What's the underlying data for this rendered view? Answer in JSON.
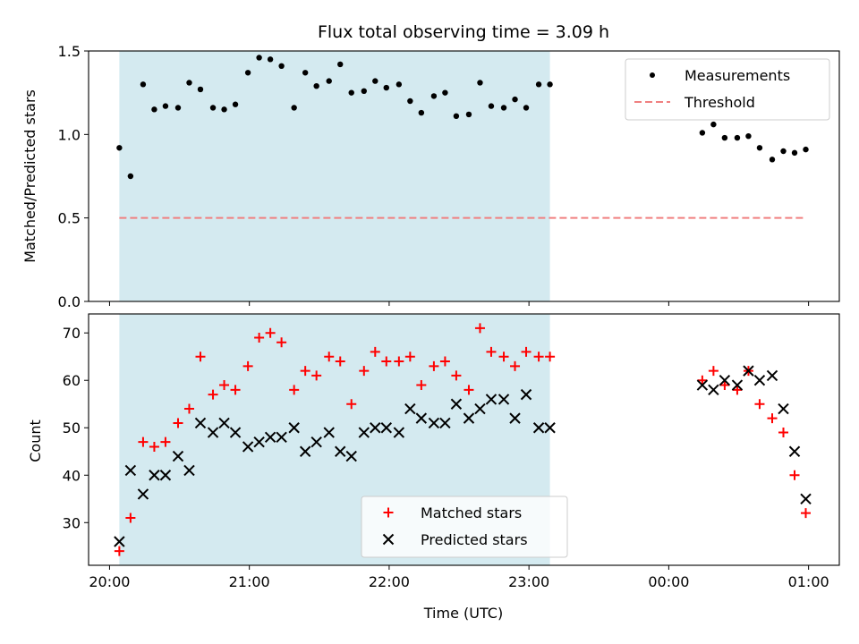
{
  "chart_data": {
    "title": "Flux total observing time = 3.09 h",
    "xlabel": "Time (UTC)",
    "x_ticks": [
      "20:00",
      "21:00",
      "22:00",
      "23:00",
      "00:00",
      "01:00"
    ],
    "x_ticks_hours": [
      20,
      21,
      22,
      23,
      24,
      25
    ],
    "xlim_hours": [
      19.85,
      25.22
    ],
    "shaded_region_hours": [
      20.07,
      23.15
    ],
    "shade_color": "#d4eaf0",
    "panels": [
      {
        "type": "scatter",
        "ylabel": "Matched/Predicted stars",
        "ylim": [
          0,
          1.5
        ],
        "y_ticks": [
          0.0,
          0.5,
          1.0,
          1.5
        ],
        "y_tick_labels": [
          "0.0",
          "0.5",
          "1.0",
          "1.5"
        ],
        "legend_position": "top-right",
        "series": [
          {
            "name": "Measurements",
            "marker": "dot",
            "color": "#000000",
            "points": [
              [
                20.07,
                0.92
              ],
              [
                20.15,
                0.75
              ],
              [
                20.24,
                1.3
              ],
              [
                20.32,
                1.15
              ],
              [
                20.4,
                1.17
              ],
              [
                20.49,
                1.16
              ],
              [
                20.57,
                1.31
              ],
              [
                20.65,
                1.27
              ],
              [
                20.74,
                1.16
              ],
              [
                20.82,
                1.15
              ],
              [
                20.9,
                1.18
              ],
              [
                20.99,
                1.37
              ],
              [
                21.07,
                1.46
              ],
              [
                21.15,
                1.45
              ],
              [
                21.23,
                1.41
              ],
              [
                21.32,
                1.16
              ],
              [
                21.4,
                1.37
              ],
              [
                21.48,
                1.29
              ],
              [
                21.57,
                1.32
              ],
              [
                21.65,
                1.42
              ],
              [
                21.73,
                1.25
              ],
              [
                21.82,
                1.26
              ],
              [
                21.9,
                1.32
              ],
              [
                21.98,
                1.28
              ],
              [
                22.07,
                1.3
              ],
              [
                22.15,
                1.2
              ],
              [
                22.23,
                1.13
              ],
              [
                22.32,
                1.23
              ],
              [
                22.4,
                1.25
              ],
              [
                22.48,
                1.11
              ],
              [
                22.57,
                1.12
              ],
              [
                22.65,
                1.31
              ],
              [
                22.73,
                1.17
              ],
              [
                22.82,
                1.16
              ],
              [
                22.9,
                1.21
              ],
              [
                22.98,
                1.16
              ],
              [
                23.07,
                1.3
              ],
              [
                23.15,
                1.3
              ],
              [
                24.24,
                1.01
              ],
              [
                24.32,
                1.06
              ],
              [
                24.4,
                0.98
              ],
              [
                24.49,
                0.98
              ],
              [
                24.57,
                0.99
              ],
              [
                24.65,
                0.92
              ],
              [
                24.74,
                0.85
              ],
              [
                24.82,
                0.9
              ],
              [
                24.9,
                0.89
              ],
              [
                24.98,
                0.91
              ]
            ]
          },
          {
            "name": "Threshold",
            "marker": "dashed-line",
            "color": "#f08080",
            "points": [
              [
                20.07,
                0.5
              ],
              [
                24.98,
                0.5
              ]
            ]
          }
        ]
      },
      {
        "type": "scatter",
        "ylabel": "Count",
        "ylim": [
          21,
          74
        ],
        "y_ticks": [
          30,
          40,
          50,
          60,
          70
        ],
        "y_tick_labels": [
          "30",
          "40",
          "50",
          "60",
          "70"
        ],
        "legend_position": "bottom-center",
        "series": [
          {
            "name": "Matched stars",
            "marker": "plus",
            "color": "#ff0000",
            "points": [
              [
                20.07,
                24
              ],
              [
                20.15,
                31
              ],
              [
                20.24,
                47
              ],
              [
                20.32,
                46
              ],
              [
                20.4,
                47
              ],
              [
                20.49,
                51
              ],
              [
                20.57,
                54
              ],
              [
                20.65,
                65
              ],
              [
                20.74,
                57
              ],
              [
                20.82,
                59
              ],
              [
                20.9,
                58
              ],
              [
                20.99,
                63
              ],
              [
                21.07,
                69
              ],
              [
                21.15,
                70
              ],
              [
                21.23,
                68
              ],
              [
                21.32,
                58
              ],
              [
                21.4,
                62
              ],
              [
                21.48,
                61
              ],
              [
                21.57,
                65
              ],
              [
                21.65,
                64
              ],
              [
                21.73,
                55
              ],
              [
                21.82,
                62
              ],
              [
                21.9,
                66
              ],
              [
                21.98,
                64
              ],
              [
                22.07,
                64
              ],
              [
                22.15,
                65
              ],
              [
                22.23,
                59
              ],
              [
                22.32,
                63
              ],
              [
                22.4,
                64
              ],
              [
                22.48,
                61
              ],
              [
                22.57,
                58
              ],
              [
                22.65,
                71
              ],
              [
                22.73,
                66
              ],
              [
                22.82,
                65
              ],
              [
                22.9,
                63
              ],
              [
                22.98,
                66
              ],
              [
                23.07,
                65
              ],
              [
                23.15,
                65
              ],
              [
                24.24,
                60
              ],
              [
                24.32,
                62
              ],
              [
                24.4,
                59
              ],
              [
                24.49,
                58
              ],
              [
                24.57,
                62
              ],
              [
                24.65,
                55
              ],
              [
                24.74,
                52
              ],
              [
                24.82,
                49
              ],
              [
                24.9,
                40
              ],
              [
                24.98,
                32
              ]
            ]
          },
          {
            "name": "Predicted stars",
            "marker": "x",
            "color": "#000000",
            "points": [
              [
                20.07,
                26
              ],
              [
                20.15,
                41
              ],
              [
                20.24,
                36
              ],
              [
                20.32,
                40
              ],
              [
                20.4,
                40
              ],
              [
                20.49,
                44
              ],
              [
                20.57,
                41
              ],
              [
                20.65,
                51
              ],
              [
                20.74,
                49
              ],
              [
                20.82,
                51
              ],
              [
                20.9,
                49
              ],
              [
                20.99,
                46
              ],
              [
                21.07,
                47
              ],
              [
                21.15,
                48
              ],
              [
                21.23,
                48
              ],
              [
                21.32,
                50
              ],
              [
                21.4,
                45
              ],
              [
                21.48,
                47
              ],
              [
                21.57,
                49
              ],
              [
                21.65,
                45
              ],
              [
                21.73,
                44
              ],
              [
                21.82,
                49
              ],
              [
                21.9,
                50
              ],
              [
                21.98,
                50
              ],
              [
                22.07,
                49
              ],
              [
                22.15,
                54
              ],
              [
                22.23,
                52
              ],
              [
                22.32,
                51
              ],
              [
                22.4,
                51
              ],
              [
                22.48,
                55
              ],
              [
                22.57,
                52
              ],
              [
                22.65,
                54
              ],
              [
                22.73,
                56
              ],
              [
                22.82,
                56
              ],
              [
                22.9,
                52
              ],
              [
                22.98,
                57
              ],
              [
                23.07,
                50
              ],
              [
                23.15,
                50
              ],
              [
                24.24,
                59
              ],
              [
                24.32,
                58
              ],
              [
                24.4,
                60
              ],
              [
                24.49,
                59
              ],
              [
                24.57,
                62
              ],
              [
                24.65,
                60
              ],
              [
                24.74,
                61
              ],
              [
                24.82,
                54
              ],
              [
                24.9,
                45
              ],
              [
                24.98,
                35
              ]
            ]
          }
        ]
      }
    ]
  }
}
